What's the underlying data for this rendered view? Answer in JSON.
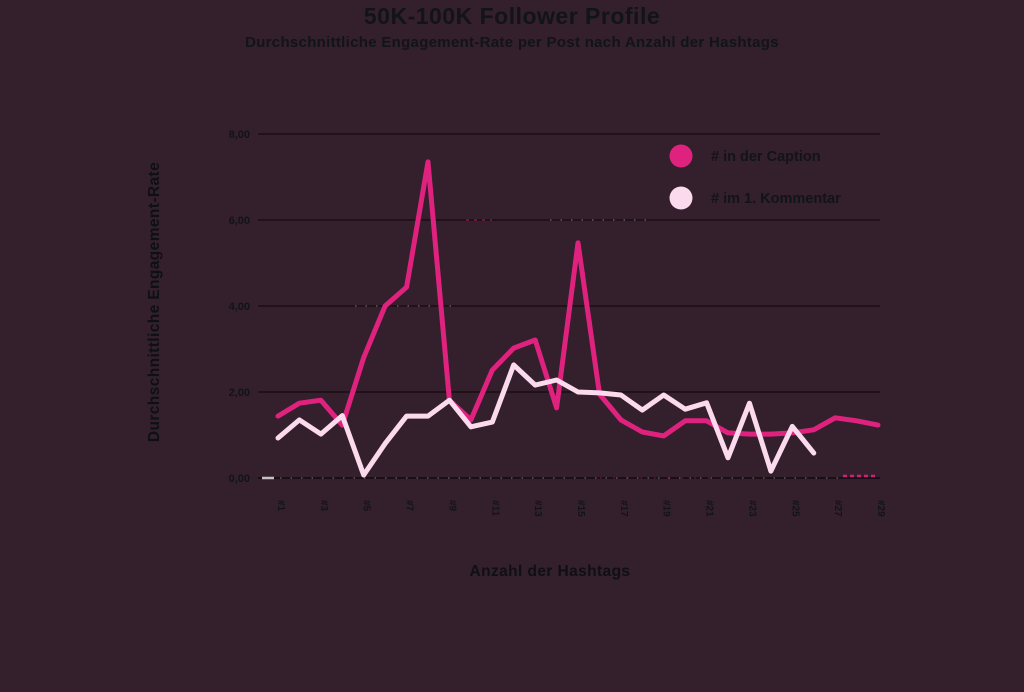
{
  "chart_data": {
    "type": "line",
    "title": "50K-100K Follower Profile",
    "subtitle": "Durchschnittliche Engagement-Rate per Post nach Anzahl der Hashtags",
    "xlabel": "Anzahl der Hashtags",
    "ylabel": "Durchschnittliche Engagement-Rate",
    "ylim": [
      0,
      8
    ],
    "ytick_values": [
      0,
      2,
      4,
      6,
      8
    ],
    "ytick_labels": [
      "0,00",
      "2,00",
      "4,00",
      "6,00",
      "8,00"
    ],
    "xtick_values": [
      1,
      3,
      5,
      7,
      9,
      11,
      13,
      15,
      17,
      19,
      21,
      23,
      25,
      27,
      29
    ],
    "xtick_labels": [
      "#1",
      "#3",
      "#5",
      "#7",
      "#9",
      "#11",
      "#13",
      "#15",
      "#17",
      "#19",
      "#21",
      "#23",
      "#25",
      "#27",
      "#29"
    ],
    "x_range": [
      1,
      29
    ],
    "grid": "horizontal",
    "legend_position": "top-right-inside",
    "series": [
      {
        "name": "# in der Caption",
        "color": "#e0227f",
        "x_start": 1,
        "values": [
          1.44,
          1.74,
          1.81,
          1.23,
          2.8,
          4.0,
          4.44,
          7.35,
          1.81,
          1.35,
          2.51,
          3.02,
          3.21,
          1.63,
          5.47,
          1.95,
          1.35,
          1.07,
          0.98,
          1.33,
          1.33,
          1.05,
          1.02,
          1.02,
          1.05,
          1.12,
          1.4,
          1.33,
          1.23
        ]
      },
      {
        "name": "# im 1. Kommentar",
        "color": "#fbdaee",
        "x_start": 1,
        "values": [
          0.93,
          1.35,
          1.02,
          1.45,
          0.07,
          0.8,
          1.44,
          1.44,
          1.81,
          1.19,
          1.3,
          2.63,
          2.16,
          2.28,
          2.0,
          1.98,
          1.93,
          1.58,
          1.93,
          1.6,
          1.75,
          0.47,
          1.74,
          0.16,
          1.2,
          0.58
        ]
      }
    ],
    "colors": {
      "background": "#341f2c",
      "text": "#11141a",
      "gridline": "#1b0e15"
    }
  }
}
